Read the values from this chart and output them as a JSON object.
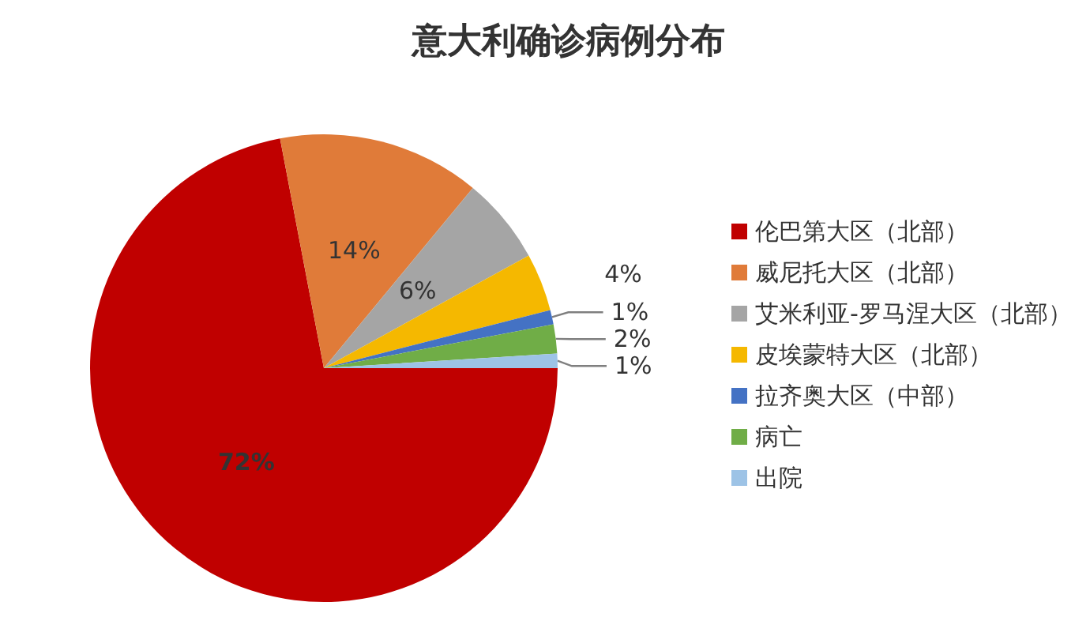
{
  "chart_data": {
    "type": "pie",
    "title": "意大利确诊病例分布",
    "categories": [
      "伦巴第大区（北部）",
      "威尼托大区（北部）",
      "艾米利亚-罗马涅大区（北部）",
      "皮埃蒙特大区（北部）",
      "拉齐奥大区（中部）",
      "病亡",
      "出院"
    ],
    "values": [
      72,
      14,
      6,
      4,
      1,
      2,
      1
    ],
    "value_labels": [
      "72%",
      "14%",
      "6%",
      "4%",
      "1%",
      "2%",
      "1%"
    ],
    "colors": [
      "#c00000",
      "#e07b39",
      "#a5a5a5",
      "#f5b800",
      "#4472c4",
      "#70ad47",
      "#9dc3e6"
    ],
    "legend": "right"
  }
}
